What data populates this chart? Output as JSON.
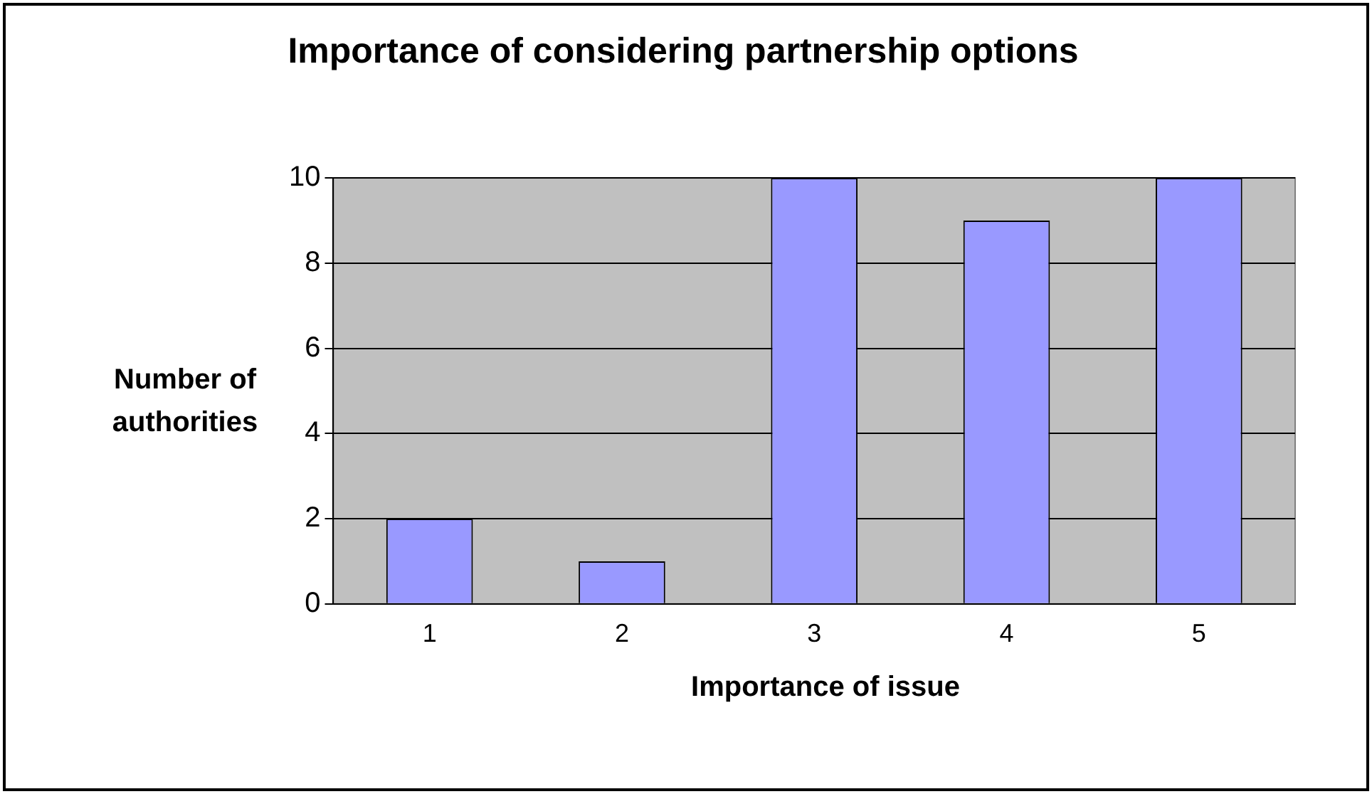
{
  "chart_data": {
    "type": "bar",
    "title": "Importance of considering partnership options",
    "xlabel": "Importance of issue",
    "ylabel": "Number of authorities",
    "categories": [
      "1",
      "2",
      "3",
      "4",
      "5"
    ],
    "values": [
      2,
      1,
      10,
      9,
      10
    ],
    "color": "#9999ff",
    "ylim": [
      0,
      10
    ],
    "yticks": [
      0,
      2,
      4,
      6,
      8,
      10
    ],
    "grid": "y",
    "legend": false
  }
}
